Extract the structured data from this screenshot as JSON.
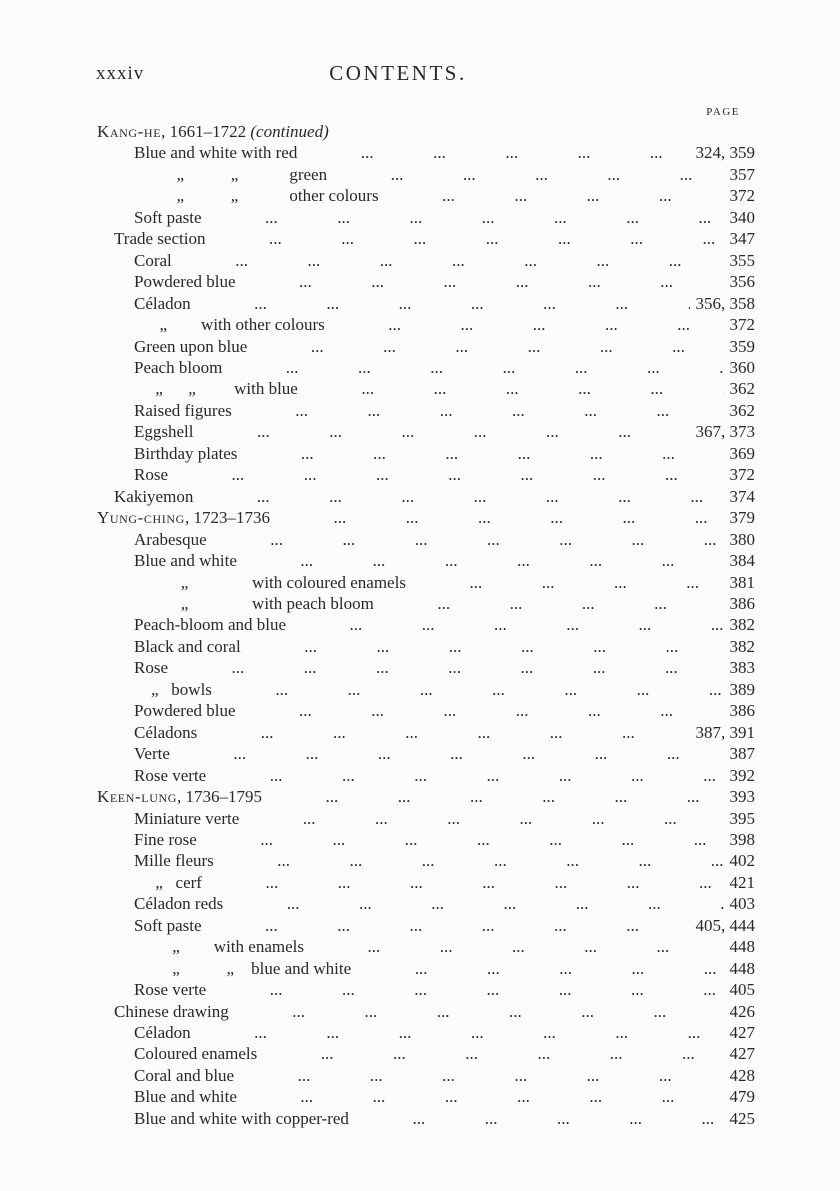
{
  "page": {
    "folio": "xxxiv",
    "title": "CONTENTS.",
    "column_header": "PAGE"
  },
  "colors": {
    "paper": "#fcfcfb",
    "ink": "#2b2724"
  },
  "toc": {
    "rows": [
      {
        "type": "section",
        "name": "Kang-he",
        "dates": ", 1661–1722 ",
        "note": "(continued)",
        "page": ""
      },
      {
        "type": "entry",
        "indent": 2,
        "label": "Blue and white with red",
        "page": "324, 359"
      },
      {
        "type": "entry",
        "indent": 2,
        "label": "          „           „            green",
        "page": "357"
      },
      {
        "type": "entry",
        "indent": 2,
        "label": "          „           „            other colours",
        "page": "372"
      },
      {
        "type": "entry",
        "indent": 2,
        "label": "Soft paste",
        "page": "340"
      },
      {
        "type": "entry",
        "indent": 1,
        "label": "Trade section",
        "page": "347"
      },
      {
        "type": "entry",
        "indent": 2,
        "label": "Coral",
        "page": "355"
      },
      {
        "type": "entry",
        "indent": 2,
        "label": "Powdered blue",
        "page": "356"
      },
      {
        "type": "entry",
        "indent": 2,
        "label": "Céladon",
        "page": "356, 358"
      },
      {
        "type": "entry",
        "indent": 2,
        "label": "      „        with other colours",
        "page": "372"
      },
      {
        "type": "entry",
        "indent": 2,
        "label": "Green upon blue",
        "page": "359"
      },
      {
        "type": "entry",
        "indent": 2,
        "label": "Peach bloom",
        "page": "360"
      },
      {
        "type": "entry",
        "indent": 2,
        "label": "     „      „         with blue",
        "page": "362"
      },
      {
        "type": "entry",
        "indent": 2,
        "label": "Raised figures",
        "page": "362"
      },
      {
        "type": "entry",
        "indent": 2,
        "label": "Eggshell",
        "page": "367, 373"
      },
      {
        "type": "entry",
        "indent": 2,
        "label": "Birthday plates",
        "page": "369"
      },
      {
        "type": "entry",
        "indent": 2,
        "label": "Rose",
        "page": "372"
      },
      {
        "type": "entry",
        "indent": 1,
        "label": "Kakiyemon",
        "page": "374"
      },
      {
        "type": "section",
        "name": "Yung-ching",
        "dates": ", 1723–1736",
        "note": "",
        "page": "379"
      },
      {
        "type": "entry",
        "indent": 2,
        "label": "Arabesque",
        "page": "380"
      },
      {
        "type": "entry",
        "indent": 2,
        "label": "Blue and white",
        "page": "384"
      },
      {
        "type": "entry",
        "indent": 2,
        "label": "           „               with coloured enamels",
        "page": "381"
      },
      {
        "type": "entry",
        "indent": 2,
        "label": "           „               with peach bloom",
        "page": "386"
      },
      {
        "type": "entry",
        "indent": 2,
        "label": "Peach-bloom and blue",
        "page": "382"
      },
      {
        "type": "entry",
        "indent": 2,
        "label": "Black and coral",
        "page": "382"
      },
      {
        "type": "entry",
        "indent": 2,
        "label": "Rose",
        "page": "383"
      },
      {
        "type": "entry",
        "indent": 2,
        "label": "    „   bowls",
        "page": "389"
      },
      {
        "type": "entry",
        "indent": 2,
        "label": "Powdered blue",
        "page": "386"
      },
      {
        "type": "entry",
        "indent": 2,
        "label": "Céladons",
        "page": "387, 391"
      },
      {
        "type": "entry",
        "indent": 2,
        "label": "Verte",
        "page": "387"
      },
      {
        "type": "entry",
        "indent": 2,
        "label": "Rose verte",
        "page": "392"
      },
      {
        "type": "section",
        "name": "Keen-lung",
        "dates": ", 1736–1795",
        "note": "",
        "page": "393"
      },
      {
        "type": "entry",
        "indent": 2,
        "label": "Miniature verte",
        "page": "395"
      },
      {
        "type": "entry",
        "indent": 2,
        "label": "Fine rose",
        "page": "398"
      },
      {
        "type": "entry",
        "indent": 2,
        "label": "Mille fleurs",
        "page": "402"
      },
      {
        "type": "entry",
        "indent": 2,
        "label": "     „   cerf",
        "page": "421"
      },
      {
        "type": "entry",
        "indent": 2,
        "label": "Céladon reds",
        "page": "403"
      },
      {
        "type": "entry",
        "indent": 2,
        "label": "Soft paste",
        "page": "405, 444"
      },
      {
        "type": "entry",
        "indent": 2,
        "label": "         „        with enamels",
        "page": "448"
      },
      {
        "type": "entry",
        "indent": 2,
        "label": "         „           „    blue and white",
        "page": "448"
      },
      {
        "type": "entry",
        "indent": 2,
        "label": "Rose verte",
        "page": "405"
      },
      {
        "type": "entry",
        "indent": 1,
        "label": "Chinese drawing",
        "page": "426"
      },
      {
        "type": "entry",
        "indent": 2,
        "label": "Céladon",
        "page": "427"
      },
      {
        "type": "entry",
        "indent": 2,
        "label": "Coloured enamels",
        "page": "427"
      },
      {
        "type": "entry",
        "indent": 2,
        "label": "Coral and blue",
        "page": "428"
      },
      {
        "type": "entry",
        "indent": 2,
        "label": "Blue and white",
        "page": "479"
      },
      {
        "type": "entry",
        "indent": 2,
        "label": "Blue and white with copper-red",
        "page": "425"
      }
    ]
  }
}
